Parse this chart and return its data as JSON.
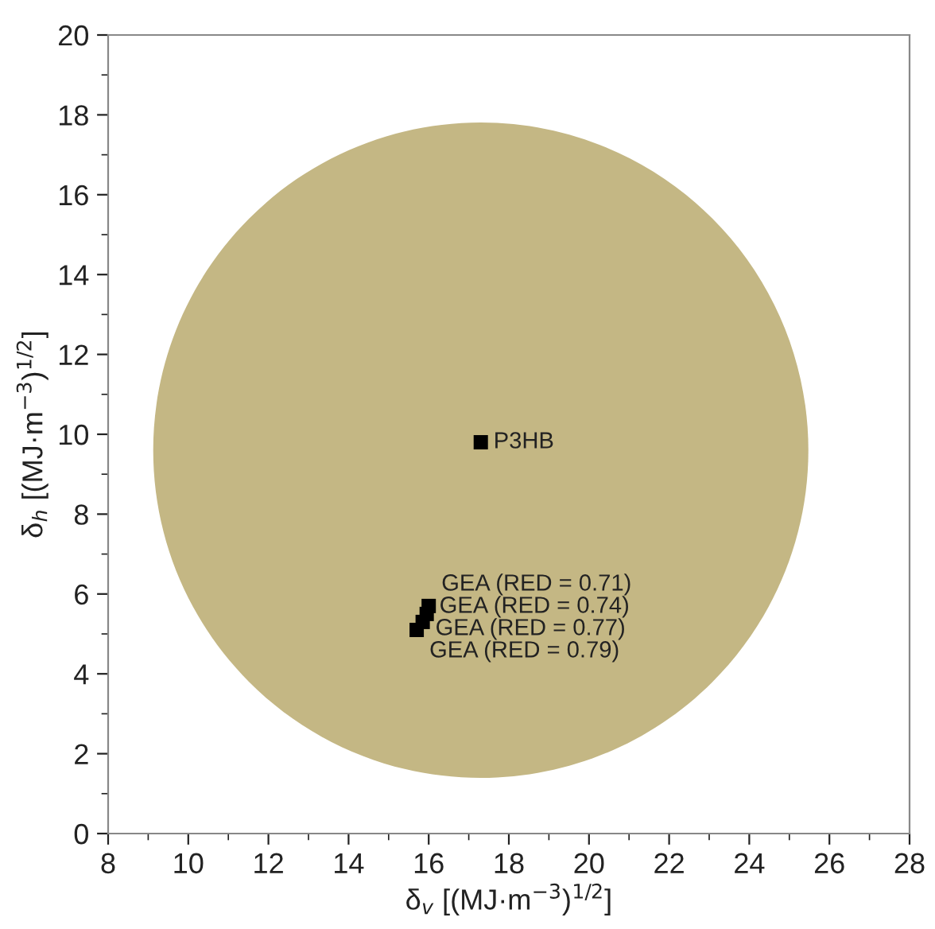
{
  "chart_data": {
    "type": "scatter",
    "xlabel": "δ$_{v}$ [(MJ·m$^{−3}$)$^{1/2}$]",
    "ylabel": "δ$_{h}$ [(MJ·m$^{−3}$)$^{1/2}$]",
    "xlim": [
      8,
      28
    ],
    "xticks": [
      8,
      10,
      12,
      14,
      16,
      18,
      20,
      22,
      24,
      26,
      28
    ],
    "ylim": [
      0,
      20
    ],
    "yticks": [
      0,
      2,
      4,
      6,
      8,
      10,
      12,
      14,
      16,
      18,
      20
    ],
    "grid": false,
    "marker": "square",
    "series": [
      {
        "type": "bubble",
        "marker": "circle",
        "color": "#c4b784",
        "x": [
          17.3
        ],
        "values": [
          9.6
        ],
        "sizes": [
          1
        ]
      },
      {
        "color": "#000000",
        "x": [
          17.3
        ],
        "values": [
          9.8
        ]
      },
      {
        "color": "#000000",
        "x": [
          16.0,
          15.95,
          15.85,
          15.7
        ],
        "values": [
          5.7,
          5.5,
          5.3,
          5.1
        ]
      }
    ],
    "annotations": [
      {
        "text": "P3HB",
        "x": 17.3,
        "y": 9.8
      },
      {
        "text": "GEA (RED = 0.71)",
        "x": 16.0,
        "y": 5.7
      },
      {
        "text": "GEA (RED = 0.74)",
        "x": 15.95,
        "y": 5.5
      },
      {
        "text": "GEA (RED = 0.77)",
        "x": 15.85,
        "y": 5.3
      },
      {
        "text": "GEA (RED = 0.79)",
        "x": 15.7,
        "y": 5.1
      }
    ]
  }
}
